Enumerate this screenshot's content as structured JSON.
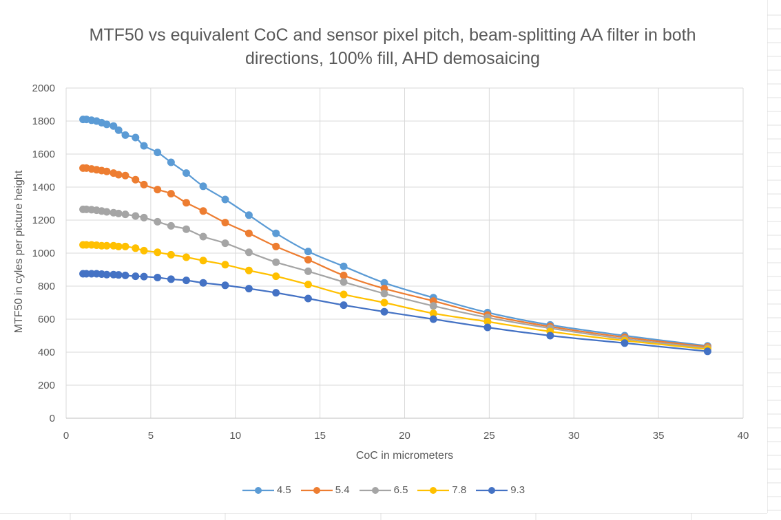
{
  "chart_data": {
    "type": "line",
    "title": "MTF50 vs equivalent CoC and sensor pixel pitch, beam-splitting AA filter in both directions, 100% fill, AHD demosaicing",
    "xlabel": "CoC in micrometers",
    "ylabel": "MTF50 in cyles per picture height",
    "xlim": [
      0,
      40
    ],
    "ylim": [
      0,
      2000
    ],
    "x_ticks": [
      "0",
      "5",
      "10",
      "15",
      "20",
      "25",
      "30",
      "35",
      "40"
    ],
    "y_ticks": [
      "0",
      "200",
      "400",
      "600",
      "800",
      "1000",
      "1200",
      "1400",
      "1600",
      "1800",
      "2000"
    ],
    "grid": true,
    "legend_position": "bottom",
    "x": [
      1.0,
      1.2,
      1.5,
      1.8,
      2.1,
      2.4,
      2.8,
      3.1,
      3.5,
      4.1,
      4.6,
      5.4,
      6.2,
      7.1,
      8.1,
      9.4,
      10.8,
      12.4,
      14.3,
      16.4,
      18.8,
      21.7,
      24.9,
      28.6,
      33.0,
      37.9
    ],
    "series": [
      {
        "name": "4.5",
        "color": "#5B9BD5",
        "values": [
          1810,
          1810,
          1805,
          1800,
          1790,
          1780,
          1770,
          1745,
          1715,
          1700,
          1650,
          1610,
          1550,
          1485,
          1405,
          1325,
          1230,
          1120,
          1010,
          920,
          820,
          730,
          640,
          565,
          500,
          438
        ]
      },
      {
        "name": "5.4",
        "color": "#ED7D31",
        "values": [
          1515,
          1515,
          1510,
          1505,
          1500,
          1495,
          1485,
          1475,
          1470,
          1445,
          1415,
          1385,
          1360,
          1305,
          1255,
          1185,
          1120,
          1040,
          960,
          865,
          785,
          710,
          625,
          555,
          490,
          432
        ]
      },
      {
        "name": "6.5",
        "color": "#A5A5A5",
        "values": [
          1265,
          1265,
          1263,
          1260,
          1255,
          1250,
          1245,
          1240,
          1235,
          1225,
          1215,
          1190,
          1165,
          1145,
          1100,
          1060,
          1005,
          945,
          890,
          825,
          755,
          680,
          610,
          545,
          480,
          425
        ]
      },
      {
        "name": "7.8",
        "color": "#FFC000",
        "values": [
          1050,
          1050,
          1050,
          1048,
          1045,
          1045,
          1045,
          1040,
          1040,
          1030,
          1015,
          1005,
          990,
          975,
          955,
          930,
          895,
          860,
          810,
          750,
          700,
          635,
          585,
          525,
          470,
          418
        ]
      },
      {
        "name": "9.3",
        "color": "#4472C4",
        "values": [
          875,
          875,
          875,
          875,
          873,
          870,
          870,
          868,
          865,
          860,
          858,
          852,
          842,
          835,
          820,
          805,
          785,
          760,
          725,
          685,
          645,
          600,
          550,
          500,
          455,
          405
        ]
      }
    ]
  }
}
